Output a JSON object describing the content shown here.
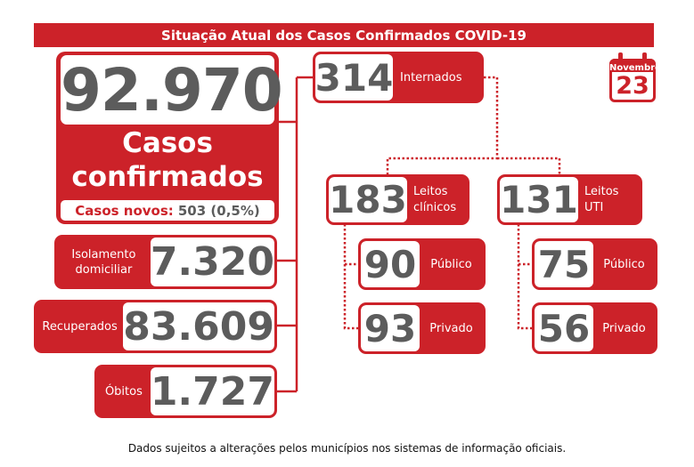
{
  "header": {
    "title": "Situação Atual dos Casos Confirmados COVID-19"
  },
  "calendar": {
    "month": "Novembro",
    "day": "23"
  },
  "confirmed": {
    "value": "92.970",
    "label_line1": "Casos",
    "label_line2": "confirmados",
    "new_label": "Casos novos:",
    "new_value": "503 (0,5%)"
  },
  "isolation": {
    "label_line1": "Isolamento",
    "label_line2": "domiciliar",
    "value": "7.320"
  },
  "recovered": {
    "label": "Recuperados",
    "value": "83.609"
  },
  "deaths": {
    "label": "Óbitos",
    "value": "1.727"
  },
  "hospitalized": {
    "value": "314",
    "label": "Internados"
  },
  "clinical": {
    "value": "183",
    "label_line1": "Leitos",
    "label_line2": "clínicos",
    "public": {
      "value": "90",
      "label": "Público"
    },
    "private": {
      "value": "93",
      "label": "Privado"
    }
  },
  "icu": {
    "value": "131",
    "label_line1": "Leitos",
    "label_line2": "UTI",
    "public": {
      "value": "75",
      "label": "Público"
    },
    "private": {
      "value": "56",
      "label": "Privado"
    }
  },
  "footer": {
    "note": "Dados sujeitos a alterações pelos municípios nos sistemas de informação oficiais."
  },
  "colors": {
    "accent": "#cc2229",
    "number": "#5c5c5c"
  }
}
